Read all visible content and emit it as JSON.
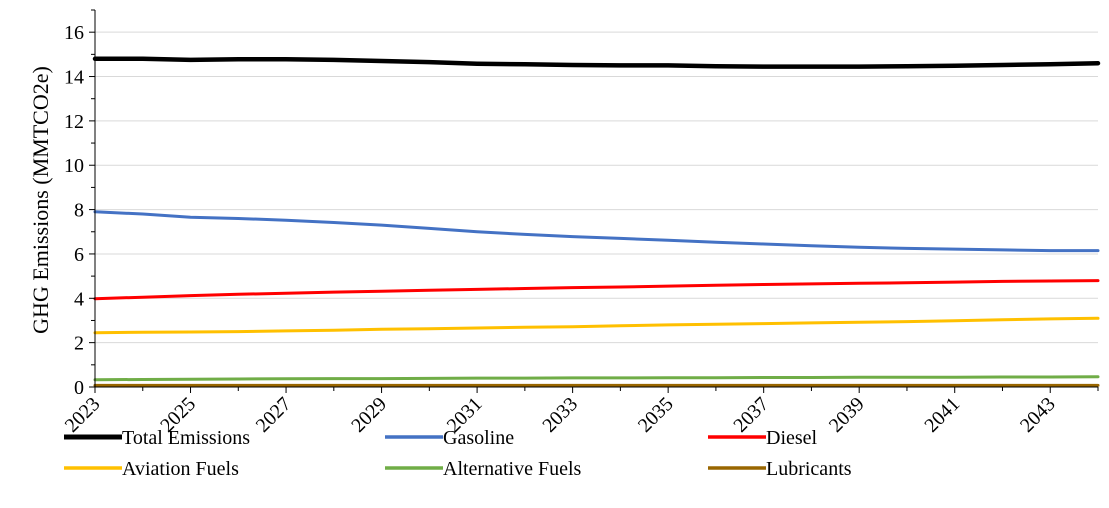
{
  "chart_data": {
    "type": "line",
    "title": "",
    "xlabel": "",
    "ylabel": "GHG Emissions (MMTCO2e)",
    "x": [
      2023,
      2024,
      2025,
      2026,
      2027,
      2028,
      2029,
      2030,
      2031,
      2032,
      2033,
      2034,
      2035,
      2036,
      2037,
      2038,
      2039,
      2040,
      2041,
      2042,
      2043,
      2044
    ],
    "xlim": [
      2023,
      2044
    ],
    "ylim": [
      0,
      17
    ],
    "x_tick_labels": [
      "2023",
      "2025",
      "2027",
      "2029",
      "2031",
      "2033",
      "2035",
      "2037",
      "2039",
      "2041",
      "2043"
    ],
    "y_tick_labels": [
      "0",
      "2",
      "4",
      "6",
      "8",
      "10",
      "12",
      "14",
      "16"
    ],
    "grid": "horizontal",
    "legend_position": "bottom",
    "series": [
      {
        "name": "Total Emissions",
        "color": "#000000",
        "values": [
          14.8,
          14.8,
          14.75,
          14.78,
          14.78,
          14.75,
          14.7,
          14.65,
          14.58,
          14.55,
          14.52,
          14.5,
          14.5,
          14.46,
          14.45,
          14.45,
          14.45,
          14.46,
          14.49,
          14.52,
          14.55,
          14.6
        ]
      },
      {
        "name": "Gasoline",
        "color": "#4472C4",
        "values": [
          7.9,
          7.8,
          7.65,
          7.6,
          7.52,
          7.42,
          7.3,
          7.15,
          7.0,
          6.88,
          6.78,
          6.7,
          6.62,
          6.53,
          6.45,
          6.37,
          6.3,
          6.25,
          6.22,
          6.18,
          6.15,
          6.15
        ]
      },
      {
        "name": "Diesel",
        "color": "#FF0000",
        "values": [
          3.98,
          4.05,
          4.12,
          4.18,
          4.23,
          4.28,
          4.32,
          4.36,
          4.4,
          4.44,
          4.48,
          4.51,
          4.55,
          4.59,
          4.62,
          4.65,
          4.68,
          4.7,
          4.73,
          4.76,
          4.78,
          4.8
        ]
      },
      {
        "name": "Aviation Fuels",
        "color": "#FFC000",
        "values": [
          2.45,
          2.47,
          2.48,
          2.5,
          2.53,
          2.56,
          2.6,
          2.63,
          2.66,
          2.69,
          2.72,
          2.76,
          2.8,
          2.83,
          2.86,
          2.89,
          2.92,
          2.95,
          2.99,
          3.03,
          3.07,
          3.1
        ]
      },
      {
        "name": "Alternative Fuels",
        "color": "#70AD47",
        "values": [
          0.33,
          0.34,
          0.35,
          0.36,
          0.37,
          0.38,
          0.38,
          0.39,
          0.4,
          0.4,
          0.41,
          0.41,
          0.42,
          0.42,
          0.43,
          0.43,
          0.44,
          0.44,
          0.44,
          0.45,
          0.45,
          0.46
        ]
      },
      {
        "name": "Lubricants",
        "color": "#996600",
        "values": [
          0.07,
          0.07,
          0.07,
          0.07,
          0.07,
          0.07,
          0.07,
          0.07,
          0.07,
          0.07,
          0.07,
          0.07,
          0.07,
          0.07,
          0.07,
          0.07,
          0.07,
          0.07,
          0.07,
          0.07,
          0.07,
          0.07
        ]
      }
    ]
  }
}
